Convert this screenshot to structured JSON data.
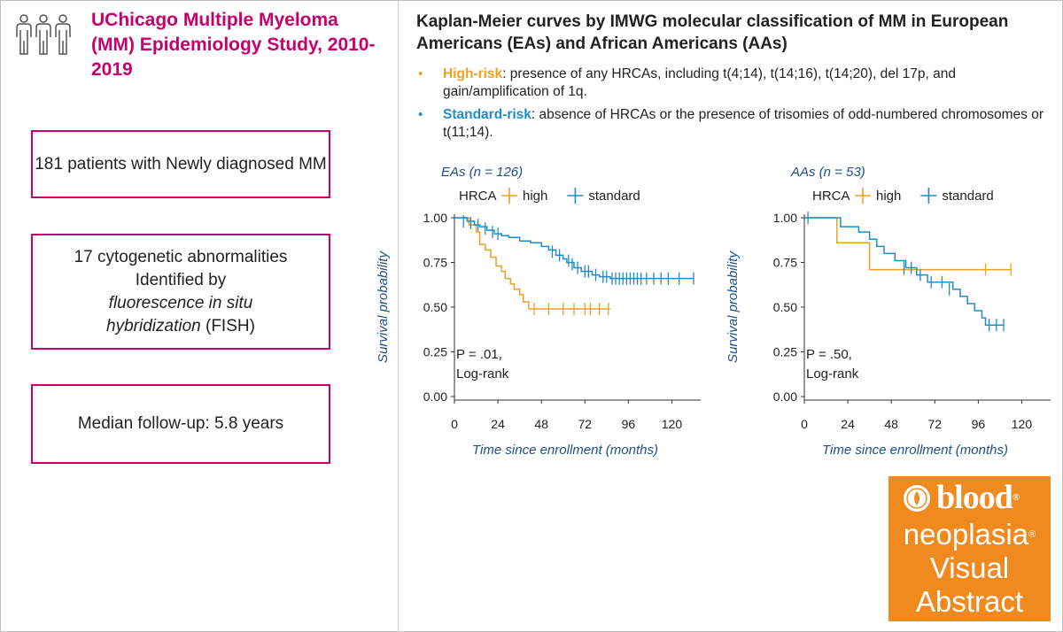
{
  "colors": {
    "magenta": "#c8006e",
    "high": "#f0a020",
    "standard": "#1f8ec8",
    "axis_text": "#1d4f8a",
    "badge": "#f08a1e"
  },
  "left_panel": {
    "title": "UChicago Multiple Myeloma (MM) Epidemiology Study, 2010-2019",
    "icon": "people-group-icon",
    "box1": "181 patients with Newly diagnosed MM",
    "box2": {
      "line1": "17 cytogenetic abnormalities",
      "line2": "Identified by",
      "line3": "fluorescence in situ",
      "line4_italic": "hybridization",
      "line4_rest": " (FISH)"
    },
    "box3": "Median follow-up: 5.8 years"
  },
  "right_panel": {
    "title": "Kaplan-Meier curves by IMWG molecular classification of MM in European Americans (EAs) and African Americans (AAs)",
    "bullets": [
      {
        "term": "High-risk",
        "text": ": presence of any HRCAs, including t(4;14), t(14;16), t(14;20), del 17p, and gain/amplification of 1q.",
        "color": "#f0a020"
      },
      {
        "term": "Standard-risk",
        "text": ":  absence of HRCAs or the presence of trisomies of odd-numbered chromosomes or t(11;14).",
        "color": "#1f8ec8"
      }
    ]
  },
  "chart_data": [
    {
      "type": "line",
      "subtitle": "EAs (n = 126)",
      "legend_title": "HRCA",
      "xlabel": "Time since enrollment (months)",
      "ylabel": "Survival probability",
      "xlim": [
        0,
        132
      ],
      "ylim": [
        0,
        1
      ],
      "xticks": [
        0,
        24,
        48,
        72,
        96,
        120
      ],
      "yticks": [
        "0.00",
        "0.25",
        "0.50",
        "0.75",
        "1.00"
      ],
      "annotation": [
        "P = .01,",
        "Log-rank"
      ],
      "series": [
        {
          "name": "high",
          "color": "#f0a020",
          "steps": [
            [
              0,
              1.0
            ],
            [
              8,
              0.96
            ],
            [
              12,
              0.92
            ],
            [
              14,
              0.85
            ],
            [
              17,
              0.82
            ],
            [
              20,
              0.78
            ],
            [
              23,
              0.73
            ],
            [
              26,
              0.7
            ],
            [
              28,
              0.66
            ],
            [
              31,
              0.63
            ],
            [
              33,
              0.6
            ],
            [
              36,
              0.57
            ],
            [
              38,
              0.53
            ],
            [
              41,
              0.49
            ],
            [
              86,
              0.49
            ]
          ],
          "censor": [
            [
              44,
              0.49
            ],
            [
              52,
              0.49
            ],
            [
              60,
              0.49
            ],
            [
              66,
              0.49
            ],
            [
              72,
              0.49
            ],
            [
              75,
              0.49
            ],
            [
              80,
              0.49
            ],
            [
              85,
              0.49
            ]
          ]
        },
        {
          "name": "standard",
          "color": "#1f8ec8",
          "steps": [
            [
              0,
              1.0
            ],
            [
              7,
              0.98
            ],
            [
              11,
              0.96
            ],
            [
              14,
              0.95
            ],
            [
              18,
              0.93
            ],
            [
              22,
              0.91
            ],
            [
              26,
              0.9
            ],
            [
              30,
              0.89
            ],
            [
              36,
              0.87
            ],
            [
              42,
              0.86
            ],
            [
              48,
              0.84
            ],
            [
              52,
              0.82
            ],
            [
              56,
              0.79
            ],
            [
              60,
              0.77
            ],
            [
              62,
              0.75
            ],
            [
              66,
              0.72
            ],
            [
              70,
              0.7
            ],
            [
              76,
              0.68
            ],
            [
              80,
              0.67
            ],
            [
              86,
              0.66
            ],
            [
              132,
              0.66
            ]
          ],
          "censor": [
            [
              5,
              0.98
            ],
            [
              9,
              0.97
            ],
            [
              13,
              0.96
            ],
            [
              17,
              0.94
            ],
            [
              21,
              0.92
            ],
            [
              24,
              0.91
            ],
            [
              54,
              0.81
            ],
            [
              58,
              0.79
            ],
            [
              63,
              0.76
            ],
            [
              65,
              0.74
            ],
            [
              68,
              0.72
            ],
            [
              72,
              0.7
            ],
            [
              74,
              0.7
            ],
            [
              78,
              0.68
            ],
            [
              82,
              0.67
            ],
            [
              84,
              0.67
            ],
            [
              87,
              0.66
            ],
            [
              89,
              0.66
            ],
            [
              91,
              0.66
            ],
            [
              93,
              0.66
            ],
            [
              95,
              0.66
            ],
            [
              97,
              0.66
            ],
            [
              99,
              0.66
            ],
            [
              101,
              0.66
            ],
            [
              103,
              0.66
            ],
            [
              106,
              0.66
            ],
            [
              110,
              0.66
            ],
            [
              114,
              0.66
            ],
            [
              118,
              0.66
            ],
            [
              124,
              0.66
            ],
            [
              132,
              0.66
            ]
          ]
        }
      ]
    },
    {
      "type": "line",
      "subtitle": "AAs (n = 53)",
      "legend_title": "HRCA",
      "xlabel": "Time since enrollment (months)",
      "ylabel": "Survival probability",
      "xlim": [
        0,
        132
      ],
      "ylim": [
        0,
        1
      ],
      "xticks": [
        0,
        24,
        48,
        72,
        96,
        120
      ],
      "yticks": [
        "0.00",
        "0.25",
        "0.50",
        "0.75",
        "1.00"
      ],
      "annotation": [
        "P = .50,",
        "Log-rank"
      ],
      "series": [
        {
          "name": "high",
          "color": "#f0a020",
          "steps": [
            [
              0,
              1.0
            ],
            [
              18,
              0.86
            ],
            [
              36,
              0.71
            ],
            [
              114,
              0.71
            ]
          ],
          "censor": [
            [
              55,
              0.71
            ],
            [
              100,
              0.71
            ],
            [
              114,
              0.71
            ]
          ]
        },
        {
          "name": "standard",
          "color": "#1f8ec8",
          "steps": [
            [
              0,
              1.0
            ],
            [
              20,
              0.95
            ],
            [
              30,
              0.92
            ],
            [
              36,
              0.88
            ],
            [
              40,
              0.84
            ],
            [
              44,
              0.8
            ],
            [
              50,
              0.76
            ],
            [
              56,
              0.72
            ],
            [
              62,
              0.68
            ],
            [
              68,
              0.64
            ],
            [
              82,
              0.6
            ],
            [
              86,
              0.56
            ],
            [
              90,
              0.52
            ],
            [
              94,
              0.48
            ],
            [
              98,
              0.44
            ],
            [
              100,
              0.4
            ],
            [
              110,
              0.4
            ]
          ],
          "censor": [
            [
              2,
              1.0
            ],
            [
              55,
              0.72
            ],
            [
              59,
              0.72
            ],
            [
              64,
              0.68
            ],
            [
              70,
              0.64
            ],
            [
              76,
              0.64
            ],
            [
              80,
              0.6
            ],
            [
              102,
              0.4
            ],
            [
              106,
              0.4
            ],
            [
              110,
              0.4
            ]
          ]
        }
      ]
    }
  ],
  "badge": {
    "word1": "blood",
    "word2": "neoplasia",
    "word3": "Visual",
    "word4": "Abstract",
    "reg": "®",
    "seal_icon": "blood-seal-icon"
  }
}
